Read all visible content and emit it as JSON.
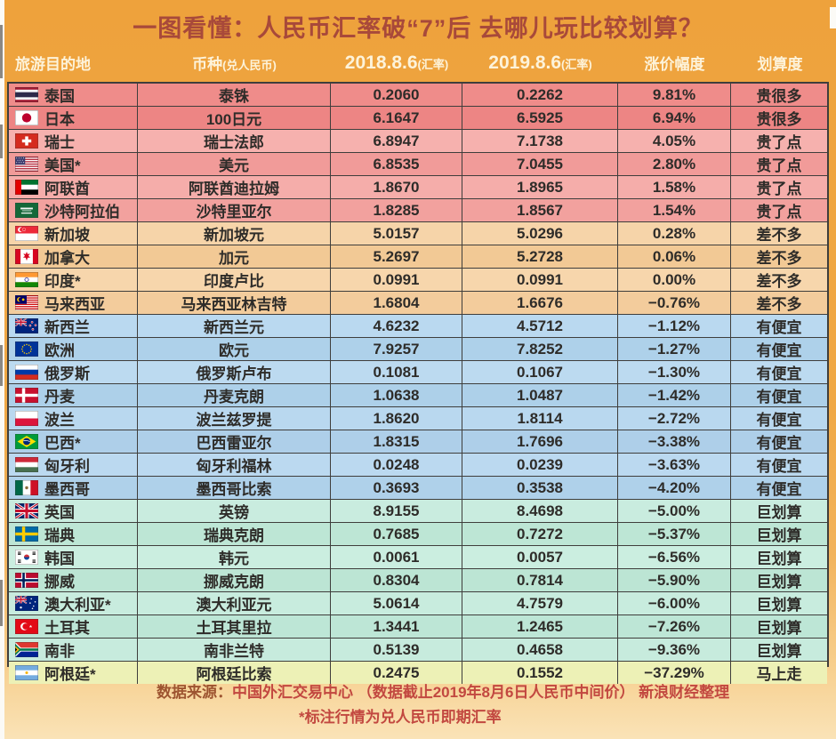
{
  "title": "一图看懂：人民币汇率破“7”后 去哪儿玩比较划算？",
  "header": [
    {
      "main": "旅游目的地",
      "sub": ""
    },
    {
      "main": "币种",
      "sub": "(兑人民币)"
    },
    {
      "main": "2018.8.6",
      "sub": "(汇率)"
    },
    {
      "main": "2019.8.6",
      "sub": "(汇率)"
    },
    {
      "main": "涨价幅度",
      "sub": ""
    },
    {
      "main": "划算度",
      "sub": ""
    }
  ],
  "chart_data": {
    "type": "table",
    "title": "一图看懂：人民币汇率破“7”后 去哪儿玩比较划算？",
    "columns": [
      "旅游目的地",
      "币种(兑人民币)",
      "2018.8.6(汇率)",
      "2019.8.6(汇率)",
      "涨价幅度",
      "划算度"
    ],
    "rows": [
      {
        "flag": "thailand",
        "destination": "泰国",
        "currency": "泰铢",
        "rate_2018": "0.2060",
        "rate_2019": "0.2262",
        "change": "9.81%",
        "verdict": "贵很多",
        "bg": "#ef8c8a"
      },
      {
        "flag": "japan",
        "destination": "日本",
        "currency": "100日元",
        "rate_2018": "6.1647",
        "rate_2019": "6.5925",
        "change": "6.94%",
        "verdict": "贵很多",
        "bg": "#ed8584"
      },
      {
        "flag": "switzerland",
        "destination": "瑞士",
        "currency": "瑞士法郎",
        "rate_2018": "6.8947",
        "rate_2019": "7.1738",
        "change": "4.05%",
        "verdict": "贵了点",
        "bg": "#f6b1ae"
      },
      {
        "flag": "usa",
        "destination": "美国*",
        "currency": "美元",
        "rate_2018": "6.8535",
        "rate_2019": "7.0455",
        "change": "2.80%",
        "verdict": "贵了点",
        "bg": "#f19b99"
      },
      {
        "flag": "uae",
        "destination": "阿联酋",
        "currency": "阿联酋迪拉姆",
        "rate_2018": "1.8670",
        "rate_2019": "1.8965",
        "change": "1.58%",
        "verdict": "贵了点",
        "bg": "#f5adaa"
      },
      {
        "flag": "saudi_arabia",
        "destination": "沙特阿拉伯",
        "currency": "沙特里亚尔",
        "rate_2018": "1.8285",
        "rate_2019": "1.8567",
        "change": "1.54%",
        "verdict": "贵了点",
        "bg": "#f2a19e"
      },
      {
        "flag": "singapore",
        "destination": "新加坡",
        "currency": "新加坡元",
        "rate_2018": "5.0157",
        "rate_2019": "5.0296",
        "change": "0.28%",
        "verdict": "差不多",
        "bg": "#f6d4a9"
      },
      {
        "flag": "canada",
        "destination": "加拿大",
        "currency": "加元",
        "rate_2018": "5.2697",
        "rate_2019": "5.2728",
        "change": "0.06%",
        "verdict": "差不多",
        "bg": "#f2c995"
      },
      {
        "flag": "india",
        "destination": "印度*",
        "currency": "印度卢比",
        "rate_2018": "0.0991",
        "rate_2019": "0.0991",
        "change": "0.00%",
        "verdict": "差不多",
        "bg": "#f7d6ac"
      },
      {
        "flag": "malaysia",
        "destination": "马来西亚",
        "currency": "马来西亚林吉特",
        "rate_2018": "1.6804",
        "rate_2019": "1.6676",
        "change": "−0.76%",
        "verdict": "差不多",
        "bg": "#f3cc9c"
      },
      {
        "flag": "new_zealand",
        "destination": "新西兰",
        "currency": "新西兰元",
        "rate_2018": "4.6232",
        "rate_2019": "4.5712",
        "change": "−1.12%",
        "verdict": "有便宜",
        "bg": "#bad9f0"
      },
      {
        "flag": "eu",
        "destination": "欧洲",
        "currency": "欧元",
        "rate_2018": "7.9257",
        "rate_2019": "7.8252",
        "change": "−1.27%",
        "verdict": "有便宜",
        "bg": "#aed1ea"
      },
      {
        "flag": "russia",
        "destination": "俄罗斯",
        "currency": "俄罗斯卢布",
        "rate_2018": "0.1081",
        "rate_2019": "0.1067",
        "change": "−1.30%",
        "verdict": "有便宜",
        "bg": "#bcdaf0"
      },
      {
        "flag": "denmark",
        "destination": "丹麦",
        "currency": "丹麦克朗",
        "rate_2018": "1.0638",
        "rate_2019": "1.0487",
        "change": "−1.42%",
        "verdict": "有便宜",
        "bg": "#add0e9"
      },
      {
        "flag": "poland",
        "destination": "波兰",
        "currency": "波兰兹罗提",
        "rate_2018": "1.8620",
        "rate_2019": "1.8114",
        "change": "−2.72%",
        "verdict": "有便宜",
        "bg": "#b9d8ef"
      },
      {
        "flag": "brazil",
        "destination": "巴西*",
        "currency": "巴西雷亚尔",
        "rate_2018": "1.8315",
        "rate_2019": "1.7696",
        "change": "−3.38%",
        "verdict": "有便宜",
        "bg": "#aecfe9"
      },
      {
        "flag": "hungary",
        "destination": "匈牙利",
        "currency": "匈牙利福林",
        "rate_2018": "0.0248",
        "rate_2019": "0.0239",
        "change": "−3.63%",
        "verdict": "有便宜",
        "bg": "#bbd9f0"
      },
      {
        "flag": "mexico",
        "destination": "墨西哥",
        "currency": "墨西哥比索",
        "rate_2018": "0.3693",
        "rate_2019": "0.3538",
        "change": "−4.20%",
        "verdict": "有便宜",
        "bg": "#afd1ea"
      },
      {
        "flag": "uk",
        "destination": "英国",
        "currency": "英镑",
        "rate_2018": "8.9155",
        "rate_2019": "8.4698",
        "change": "−5.00%",
        "verdict": "巨划算",
        "bg": "#c9ecdf"
      },
      {
        "flag": "sweden",
        "destination": "瑞典",
        "currency": "瑞典克朗",
        "rate_2018": "0.7685",
        "rate_2019": "0.7272",
        "change": "−5.37%",
        "verdict": "巨划算",
        "bg": "#bde6d5"
      },
      {
        "flag": "south_korea",
        "destination": "韩国",
        "currency": "韩元",
        "rate_2018": "0.0061",
        "rate_2019": "0.0057",
        "change": "−6.56%",
        "verdict": "巨划算",
        "bg": "#cbeee0"
      },
      {
        "flag": "norway",
        "destination": "挪威",
        "currency": "挪威克朗",
        "rate_2018": "0.8304",
        "rate_2019": "0.7814",
        "change": "−5.90%",
        "verdict": "巨划算",
        "bg": "#bce5d4"
      },
      {
        "flag": "australia",
        "destination": "澳大利亚*",
        "currency": "澳大利亚元",
        "rate_2018": "5.0614",
        "rate_2019": "4.7579",
        "change": "−6.00%",
        "verdict": "巨划算",
        "bg": "#c8ecde"
      },
      {
        "flag": "turkey",
        "destination": "土耳其",
        "currency": "土耳其里拉",
        "rate_2018": "1.3441",
        "rate_2019": "1.2465",
        "change": "−7.26%",
        "verdict": "巨划算",
        "bg": "#bde6d6"
      },
      {
        "flag": "south_africa",
        "destination": "南非",
        "currency": "南非兰特",
        "rate_2018": "0.5139",
        "rate_2019": "0.4658",
        "change": "−9.36%",
        "verdict": "巨划算",
        "bg": "#c7ebdd"
      },
      {
        "flag": "argentina",
        "destination": "阿根廷*",
        "currency": "阿根廷比索",
        "rate_2018": "0.2475",
        "rate_2019": "0.1552",
        "change": "−37.29%",
        "verdict": "马上走",
        "bg": "#edf1b6"
      }
    ]
  },
  "footer": {
    "source_label": "数据来源：",
    "source_text": "中国外汇交易中心 （数据截止2019年8月6日人民币中间价） 新浪财经整理",
    "note": "*标注行情为兑人民币即期汇率"
  },
  "colors": {
    "background_top": "#eea23c",
    "background_bottom": "#fae3b7",
    "title_text": "#a8493a",
    "header_text": "#fdf3da",
    "cell_text": "#2e2c29",
    "grid_line": "#3f3e3c",
    "footer_label": "#9d5430",
    "footer_text": "#c24840",
    "group_much_more_expensive": "#ed8584",
    "group_bit_expensive": "#f3a5a2",
    "group_about_same": "#f5d0a2",
    "group_some_savings": "#b4d5ed",
    "group_great_deal": "#c3e9da",
    "group_go_now": "#edf1b6"
  }
}
